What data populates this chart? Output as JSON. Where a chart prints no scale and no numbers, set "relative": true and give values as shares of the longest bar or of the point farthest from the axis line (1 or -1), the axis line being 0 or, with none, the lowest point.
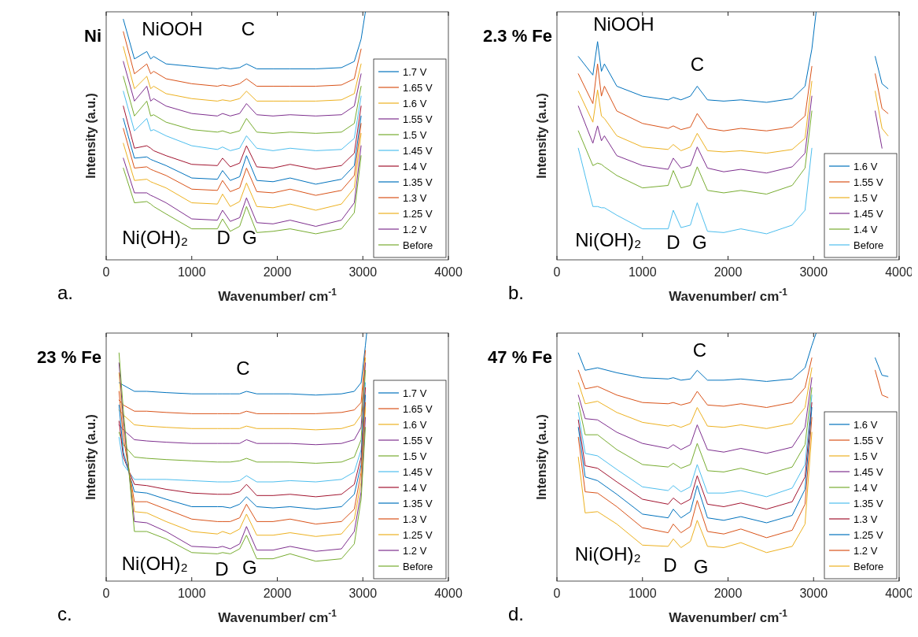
{
  "chart_data": [
    {
      "type": "line",
      "title": "Ni",
      "xlabel": "Wavenumber/ cm$^{-1}$",
      "ylabel": "Intensity (a.u.)",
      "relative": true,
      "xlim": [
        0,
        4000
      ],
      "xticks": [
        0,
        1000,
        2000,
        3000,
        4000
      ],
      "legend": "bottom right",
      "annotations": [
        "a.",
        "NiOOH",
        "C",
        "Ni(OH)₂",
        "D",
        "G"
      ],
      "x": [
        200,
        330,
        475,
        520,
        555,
        700,
        1000,
        1300,
        1360,
        1450,
        1560,
        1640,
        1760,
        1950,
        2150,
        2450,
        2750,
        2900,
        2980
      ],
      "series": [
        {
          "name": "1.7 V",
          "color": "#0072bd",
          "x": [
            200,
            330,
            475,
            520,
            555,
            700,
            1000,
            1300,
            1360,
            1450,
            1560,
            1640,
            1760,
            1950,
            2150,
            2450,
            2750,
            2900,
            2980,
            3030
          ],
          "values": [
            0.97,
            0.81,
            0.84,
            0.81,
            0.82,
            0.79,
            0.78,
            0.77,
            0.775,
            0.77,
            0.775,
            0.79,
            0.77,
            0.77,
            0.77,
            0.77,
            0.775,
            0.8,
            0.89,
            1
          ]
        },
        {
          "name": "1.65 V",
          "color": "#d95319",
          "values": [
            0.92,
            0.75,
            0.79,
            0.75,
            0.76,
            0.73,
            0.71,
            0.7,
            0.705,
            0.7,
            0.71,
            0.73,
            0.7,
            0.7,
            0.7,
            0.7,
            0.705,
            0.73,
            0.85
          ]
        },
        {
          "name": "1.6 V",
          "color": "#edb120",
          "values": [
            0.86,
            0.69,
            0.74,
            0.69,
            0.7,
            0.67,
            0.65,
            0.64,
            0.645,
            0.64,
            0.65,
            0.68,
            0.64,
            0.64,
            0.64,
            0.64,
            0.645,
            0.67,
            0.79
          ]
        },
        {
          "name": "1.55 V",
          "color": "#7e2f8e",
          "values": [
            0.8,
            0.64,
            0.7,
            0.64,
            0.65,
            0.62,
            0.59,
            0.58,
            0.59,
            0.58,
            0.59,
            0.63,
            0.585,
            0.58,
            0.585,
            0.58,
            0.585,
            0.62,
            0.75
          ]
        },
        {
          "name": "1.5 V",
          "color": "#77ac30",
          "values": [
            0.74,
            0.58,
            0.64,
            0.58,
            0.585,
            0.555,
            0.525,
            0.515,
            0.52,
            0.51,
            0.52,
            0.57,
            0.515,
            0.51,
            0.515,
            0.51,
            0.515,
            0.55,
            0.7
          ]
        },
        {
          "name": "1.45 V",
          "color": "#4dbeee",
          "values": [
            0.68,
            0.52,
            0.57,
            0.52,
            0.525,
            0.5,
            0.46,
            0.445,
            0.455,
            0.44,
            0.45,
            0.5,
            0.45,
            0.44,
            0.45,
            0.44,
            0.445,
            0.49,
            0.66
          ]
        },
        {
          "name": "1.4 V",
          "color": "#a2142f",
          "values": [
            0.62,
            0.45,
            0.46,
            0.45,
            0.44,
            0.42,
            0.385,
            0.38,
            0.41,
            0.375,
            0.39,
            0.46,
            0.375,
            0.37,
            0.385,
            0.365,
            0.38,
            0.43,
            0.62
          ]
        },
        {
          "name": "1.35 V",
          "color": "#0072bd",
          "values": [
            0.57,
            0.41,
            0.415,
            0.405,
            0.4,
            0.38,
            0.33,
            0.325,
            0.36,
            0.32,
            0.335,
            0.42,
            0.32,
            0.315,
            0.33,
            0.305,
            0.325,
            0.38,
            0.58
          ]
        },
        {
          "name": "1.3 V",
          "color": "#d95319",
          "values": [
            0.53,
            0.37,
            0.375,
            0.365,
            0.36,
            0.34,
            0.285,
            0.28,
            0.32,
            0.275,
            0.29,
            0.37,
            0.275,
            0.27,
            0.285,
            0.26,
            0.28,
            0.34,
            0.55
          ]
        },
        {
          "name": "1.25 V",
          "color": "#edb120",
          "values": [
            0.47,
            0.32,
            0.325,
            0.315,
            0.31,
            0.29,
            0.23,
            0.225,
            0.265,
            0.215,
            0.235,
            0.31,
            0.215,
            0.21,
            0.225,
            0.2,
            0.225,
            0.29,
            0.51
          ]
        },
        {
          "name": "1.2 V",
          "color": "#7e2f8e",
          "values": [
            0.41,
            0.27,
            0.27,
            0.26,
            0.255,
            0.23,
            0.165,
            0.16,
            0.2,
            0.155,
            0.17,
            0.25,
            0.15,
            0.145,
            0.16,
            0.135,
            0.16,
            0.23,
            0.46
          ]
        },
        {
          "name": "Before",
          "color": "#77ac30",
          "values": [
            0.37,
            0.23,
            0.235,
            0.225,
            0.215,
            0.185,
            0.125,
            0.125,
            0.165,
            0.115,
            0.135,
            0.215,
            0.11,
            0.115,
            0.125,
            0.105,
            0.125,
            0.19,
            0.42
          ]
        }
      ]
    },
    {
      "type": "line",
      "title": "2.3 % Fe",
      "xlabel": "Wavenumber/ cm$^{-1}$",
      "ylabel": "Intensity (a.u.)",
      "relative": true,
      "xlim": [
        0,
        4000
      ],
      "xticks": [
        0,
        1000,
        2000,
        3000,
        4000
      ],
      "legend": "bottom right",
      "annotations": [
        "b.",
        "NiOOH",
        "C",
        "Ni(OH)₂",
        "D",
        "G"
      ],
      "x": [
        250,
        420,
        475,
        520,
        555,
        700,
        1000,
        1300,
        1360,
        1450,
        1560,
        1640,
        1760,
        1950,
        2150,
        2450,
        2750,
        2900,
        2980,
        3300,
        3720,
        3800,
        3870
      ],
      "series": [
        {
          "name": "1.6 V",
          "color": "#0072bd",
          "x": [
            250,
            420,
            475,
            520,
            555,
            700,
            1000,
            1300,
            1360,
            1450,
            1560,
            1640,
            1760,
            1950,
            2150,
            2450,
            2750,
            2900,
            2980,
            3030,
            3300,
            3720,
            3800,
            3870
          ],
          "values": [
            0.82,
            0.745,
            0.88,
            0.76,
            0.79,
            0.7,
            0.66,
            0.645,
            0.655,
            0.645,
            0.66,
            0.7,
            0.645,
            0.64,
            0.645,
            0.635,
            0.65,
            0.7,
            0.85,
            1,
            null,
            0.82,
            0.71,
            0.69
          ]
        },
        {
          "name": "1.55 V",
          "color": "#d95319",
          "values": [
            0.75,
            0.63,
            0.79,
            0.66,
            0.7,
            0.6,
            0.55,
            0.53,
            0.54,
            0.525,
            0.535,
            0.59,
            0.53,
            0.52,
            0.53,
            0.52,
            0.535,
            0.58,
            0.78,
            null,
            0.75,
            0.61,
            0.59
          ]
        },
        {
          "name": "1.5 V",
          "color": "#edb120",
          "values": [
            0.68,
            0.555,
            0.685,
            0.58,
            0.57,
            0.5,
            0.455,
            0.445,
            0.465,
            0.44,
            0.455,
            0.51,
            0.44,
            0.435,
            0.44,
            0.43,
            0.445,
            0.49,
            0.72,
            null,
            0.68,
            0.53,
            0.5
          ]
        },
        {
          "name": "1.45 V",
          "color": "#7e2f8e",
          "values": [
            0.62,
            0.47,
            0.54,
            0.48,
            0.5,
            0.42,
            0.38,
            0.365,
            0.41,
            0.37,
            0.38,
            0.455,
            0.37,
            0.355,
            0.365,
            0.35,
            0.375,
            0.43,
            0.66,
            null,
            0.6,
            0.45,
            null
          ]
        },
        {
          "name": "1.4 V",
          "color": "#77ac30",
          "values": [
            0.52,
            0.38,
            0.39,
            0.385,
            0.375,
            0.34,
            0.29,
            0.3,
            0.36,
            0.29,
            0.3,
            0.375,
            0.28,
            0.27,
            0.28,
            0.265,
            0.3,
            0.37,
            0.6,
            null,
            null,
            null,
            null
          ]
        },
        {
          "name": "Before",
          "color": "#4dbeee",
          "values": [
            0.45,
            0.215,
            0.215,
            0.21,
            0.21,
            0.18,
            0.125,
            0.125,
            0.2,
            0.13,
            0.14,
            0.23,
            0.115,
            0.11,
            0.125,
            0.105,
            0.14,
            0.2,
            0.45,
            null,
            null,
            null,
            null
          ]
        }
      ]
    },
    {
      "type": "line",
      "title": "23 % Fe",
      "xlabel": "Wavenumber/ cm$^{-1}$",
      "ylabel": "Intensity (a.u.)",
      "relative": true,
      "xlim": [
        0,
        4000
      ],
      "xticks": [
        0,
        1000,
        2000,
        3000,
        4000
      ],
      "legend": "bottom right",
      "annotations": [
        "c.",
        "C",
        "Ni(OH)₂",
        "D",
        "G"
      ],
      "x": [
        150,
        200,
        330,
        475,
        700,
        1000,
        1300,
        1360,
        1450,
        1560,
        1640,
        1760,
        1950,
        2150,
        2450,
        2750,
        2900,
        2980,
        3030
      ],
      "series": [
        {
          "name": "1.7 V",
          "color": "#0072bd",
          "x": [
            150,
            200,
            330,
            475,
            700,
            1000,
            1300,
            1360,
            1450,
            1560,
            1640,
            1760,
            1950,
            2150,
            2450,
            2750,
            2900,
            2980,
            3030,
            3045
          ],
          "values": [
            0.8,
            0.79,
            0.765,
            0.765,
            0.76,
            0.755,
            0.755,
            0.755,
            0.755,
            0.755,
            0.765,
            0.755,
            0.755,
            0.755,
            0.75,
            0.755,
            0.765,
            0.8,
            0.95,
            1
          ]
        },
        {
          "name": "1.65 V",
          "color": "#d95319",
          "values": [
            0.73,
            0.71,
            0.685,
            0.685,
            0.68,
            0.675,
            0.675,
            0.675,
            0.675,
            0.675,
            0.685,
            0.675,
            0.675,
            0.675,
            0.675,
            0.68,
            0.69,
            0.72,
            0.93
          ]
        },
        {
          "name": "1.6 V",
          "color": "#edb120",
          "values": [
            0.69,
            0.67,
            0.63,
            0.625,
            0.62,
            0.615,
            0.615,
            0.615,
            0.615,
            0.615,
            0.625,
            0.615,
            0.615,
            0.615,
            0.61,
            0.615,
            0.63,
            0.67,
            0.9
          ]
        },
        {
          "name": "1.55 V",
          "color": "#7e2f8e",
          "values": [
            0.63,
            0.61,
            0.57,
            0.565,
            0.56,
            0.555,
            0.555,
            0.555,
            0.555,
            0.555,
            0.57,
            0.555,
            0.555,
            0.555,
            0.55,
            0.555,
            0.57,
            0.62,
            0.88
          ]
        },
        {
          "name": "1.5 V",
          "color": "#77ac30",
          "values": [
            0.6,
            0.55,
            0.5,
            0.495,
            0.49,
            0.485,
            0.48,
            0.48,
            0.48,
            0.485,
            0.495,
            0.48,
            0.48,
            0.48,
            0.475,
            0.48,
            0.5,
            0.57,
            0.85
          ]
        },
        {
          "name": "1.45 V",
          "color": "#4dbeee",
          "values": [
            0.58,
            0.47,
            0.41,
            0.41,
            0.41,
            0.405,
            0.4,
            0.4,
            0.4,
            0.405,
            0.425,
            0.4,
            0.4,
            0.405,
            0.4,
            0.41,
            0.44,
            0.53,
            0.8
          ]
        },
        {
          "name": "1.4 V",
          "color": "#a2142f",
          "values": [
            0.645,
            0.5,
            0.39,
            0.385,
            0.37,
            0.355,
            0.35,
            0.35,
            0.35,
            0.36,
            0.39,
            0.345,
            0.345,
            0.35,
            0.34,
            0.35,
            0.39,
            0.5,
            0.78
          ]
        },
        {
          "name": "1.35 V",
          "color": "#0072bd",
          "values": [
            0.71,
            0.52,
            0.36,
            0.355,
            0.33,
            0.3,
            0.3,
            0.3,
            0.295,
            0.31,
            0.34,
            0.3,
            0.295,
            0.3,
            0.29,
            0.3,
            0.35,
            0.47,
            0.75
          ]
        },
        {
          "name": "1.3 V",
          "color": "#d95319",
          "values": [
            0.765,
            0.58,
            0.32,
            0.32,
            0.29,
            0.25,
            0.24,
            0.24,
            0.24,
            0.255,
            0.31,
            0.24,
            0.24,
            0.25,
            0.23,
            0.24,
            0.29,
            0.44,
            0.72
          ]
        },
        {
          "name": "1.25 V",
          "color": "#edb120",
          "values": [
            0.84,
            0.63,
            0.28,
            0.275,
            0.24,
            0.2,
            0.19,
            0.2,
            0.19,
            0.21,
            0.27,
            0.185,
            0.185,
            0.195,
            0.18,
            0.19,
            0.25,
            0.4,
            0.7
          ]
        },
        {
          "name": "1.2 V",
          "color": "#7e2f8e",
          "values": [
            0.88,
            0.65,
            0.24,
            0.235,
            0.2,
            0.14,
            0.135,
            0.14,
            0.13,
            0.15,
            0.22,
            0.125,
            0.125,
            0.14,
            0.12,
            0.13,
            0.2,
            0.36,
            0.66
          ]
        },
        {
          "name": "Before",
          "color": "#77ac30",
          "values": [
            0.92,
            0.69,
            0.2,
            0.2,
            0.17,
            0.115,
            0.11,
            0.115,
            0.11,
            0.13,
            0.185,
            0.09,
            0.09,
            0.11,
            0.08,
            0.09,
            0.15,
            0.33,
            0.62
          ]
        }
      ]
    },
    {
      "type": "line",
      "title": "47 % Fe",
      "xlabel": "Wavenumber/ cm$^{-1}$",
      "ylabel": "Intensity (a.u.)",
      "relative": true,
      "xlim": [
        0,
        4000
      ],
      "xticks": [
        0,
        1000,
        2000,
        3000,
        4000
      ],
      "legend": "bottom right",
      "annotations": [
        "d.",
        "C",
        "Ni(OH)₂",
        "D",
        "G"
      ],
      "x": [
        250,
        330,
        475,
        700,
        1000,
        1300,
        1360,
        1450,
        1560,
        1640,
        1760,
        1950,
        2150,
        2450,
        2750,
        2900,
        2980,
        3300,
        3720,
        3800,
        3870
      ],
      "series": [
        {
          "name": "1.6 V",
          "color": "#0072bd",
          "x": [
            250,
            330,
            475,
            700,
            1000,
            1300,
            1360,
            1450,
            1560,
            1640,
            1760,
            1950,
            2150,
            2450,
            2750,
            2900,
            2980,
            3030,
            3300,
            3720,
            3800,
            3870
          ],
          "values": [
            0.92,
            0.85,
            0.86,
            0.84,
            0.82,
            0.815,
            0.82,
            0.81,
            0.815,
            0.85,
            0.81,
            0.81,
            0.815,
            0.805,
            0.815,
            0.86,
            0.95,
            1,
            null,
            0.9,
            0.83,
            0.825
          ]
        },
        {
          "name": "1.55 V",
          "color": "#d95319",
          "values": [
            0.85,
            0.775,
            0.785,
            0.75,
            0.72,
            0.715,
            0.72,
            0.71,
            0.72,
            0.765,
            0.71,
            0.705,
            0.715,
            0.7,
            0.72,
            0.78,
            0.9,
            null,
            0.85,
            0.75,
            0.74
          ]
        },
        {
          "name": "1.5 V",
          "color": "#edb120",
          "values": [
            0.8,
            0.715,
            0.725,
            0.68,
            0.64,
            0.625,
            0.63,
            0.62,
            0.635,
            0.7,
            0.625,
            0.62,
            0.63,
            0.615,
            0.635,
            0.7,
            0.86,
            null,
            null,
            null,
            null
          ]
        },
        {
          "name": "1.45 V",
          "color": "#7e2f8e",
          "values": [
            0.75,
            0.655,
            0.65,
            0.6,
            0.555,
            0.535,
            0.55,
            0.53,
            0.55,
            0.63,
            0.53,
            0.52,
            0.535,
            0.515,
            0.54,
            0.62,
            0.82,
            null,
            null,
            null,
            null
          ]
        },
        {
          "name": "1.4 V",
          "color": "#77ac30",
          "values": [
            0.72,
            0.59,
            0.59,
            0.53,
            0.47,
            0.46,
            0.475,
            0.455,
            0.47,
            0.555,
            0.445,
            0.44,
            0.455,
            0.43,
            0.46,
            0.55,
            0.78,
            null,
            null,
            null,
            null
          ]
        },
        {
          "name": "1.35 V",
          "color": "#4dbeee",
          "values": [
            0.68,
            0.515,
            0.505,
            0.45,
            0.38,
            0.365,
            0.385,
            0.36,
            0.38,
            0.47,
            0.355,
            0.355,
            0.365,
            0.34,
            0.375,
            0.47,
            0.75,
            null,
            null,
            null,
            null
          ]
        },
        {
          "name": "1.3 V",
          "color": "#a2142f",
          "values": [
            0.65,
            0.465,
            0.455,
            0.4,
            0.33,
            0.31,
            0.335,
            0.31,
            0.33,
            0.425,
            0.31,
            0.3,
            0.315,
            0.29,
            0.32,
            0.42,
            0.72,
            null,
            null,
            null,
            null
          ]
        },
        {
          "name": "1.25 V",
          "color": "#0072bd",
          "values": [
            0.62,
            0.42,
            0.405,
            0.35,
            0.27,
            0.255,
            0.29,
            0.255,
            0.28,
            0.385,
            0.255,
            0.245,
            0.26,
            0.235,
            0.265,
            0.37,
            0.7,
            null,
            null,
            null,
            null
          ]
        },
        {
          "name": "1.2 V",
          "color": "#d95319",
          "values": [
            0.58,
            0.36,
            0.355,
            0.3,
            0.215,
            0.195,
            0.23,
            0.195,
            0.22,
            0.325,
            0.2,
            0.19,
            0.21,
            0.175,
            0.205,
            0.31,
            0.66,
            null,
            null,
            null,
            null
          ]
        },
        {
          "name": "Before",
          "color": "#edb120",
          "values": [
            0.5,
            0.275,
            0.28,
            0.23,
            0.145,
            0.14,
            0.17,
            0.135,
            0.16,
            0.245,
            0.14,
            0.135,
            0.155,
            0.115,
            0.14,
            0.23,
            0.6,
            null,
            null,
            null,
            null
          ]
        }
      ]
    }
  ]
}
